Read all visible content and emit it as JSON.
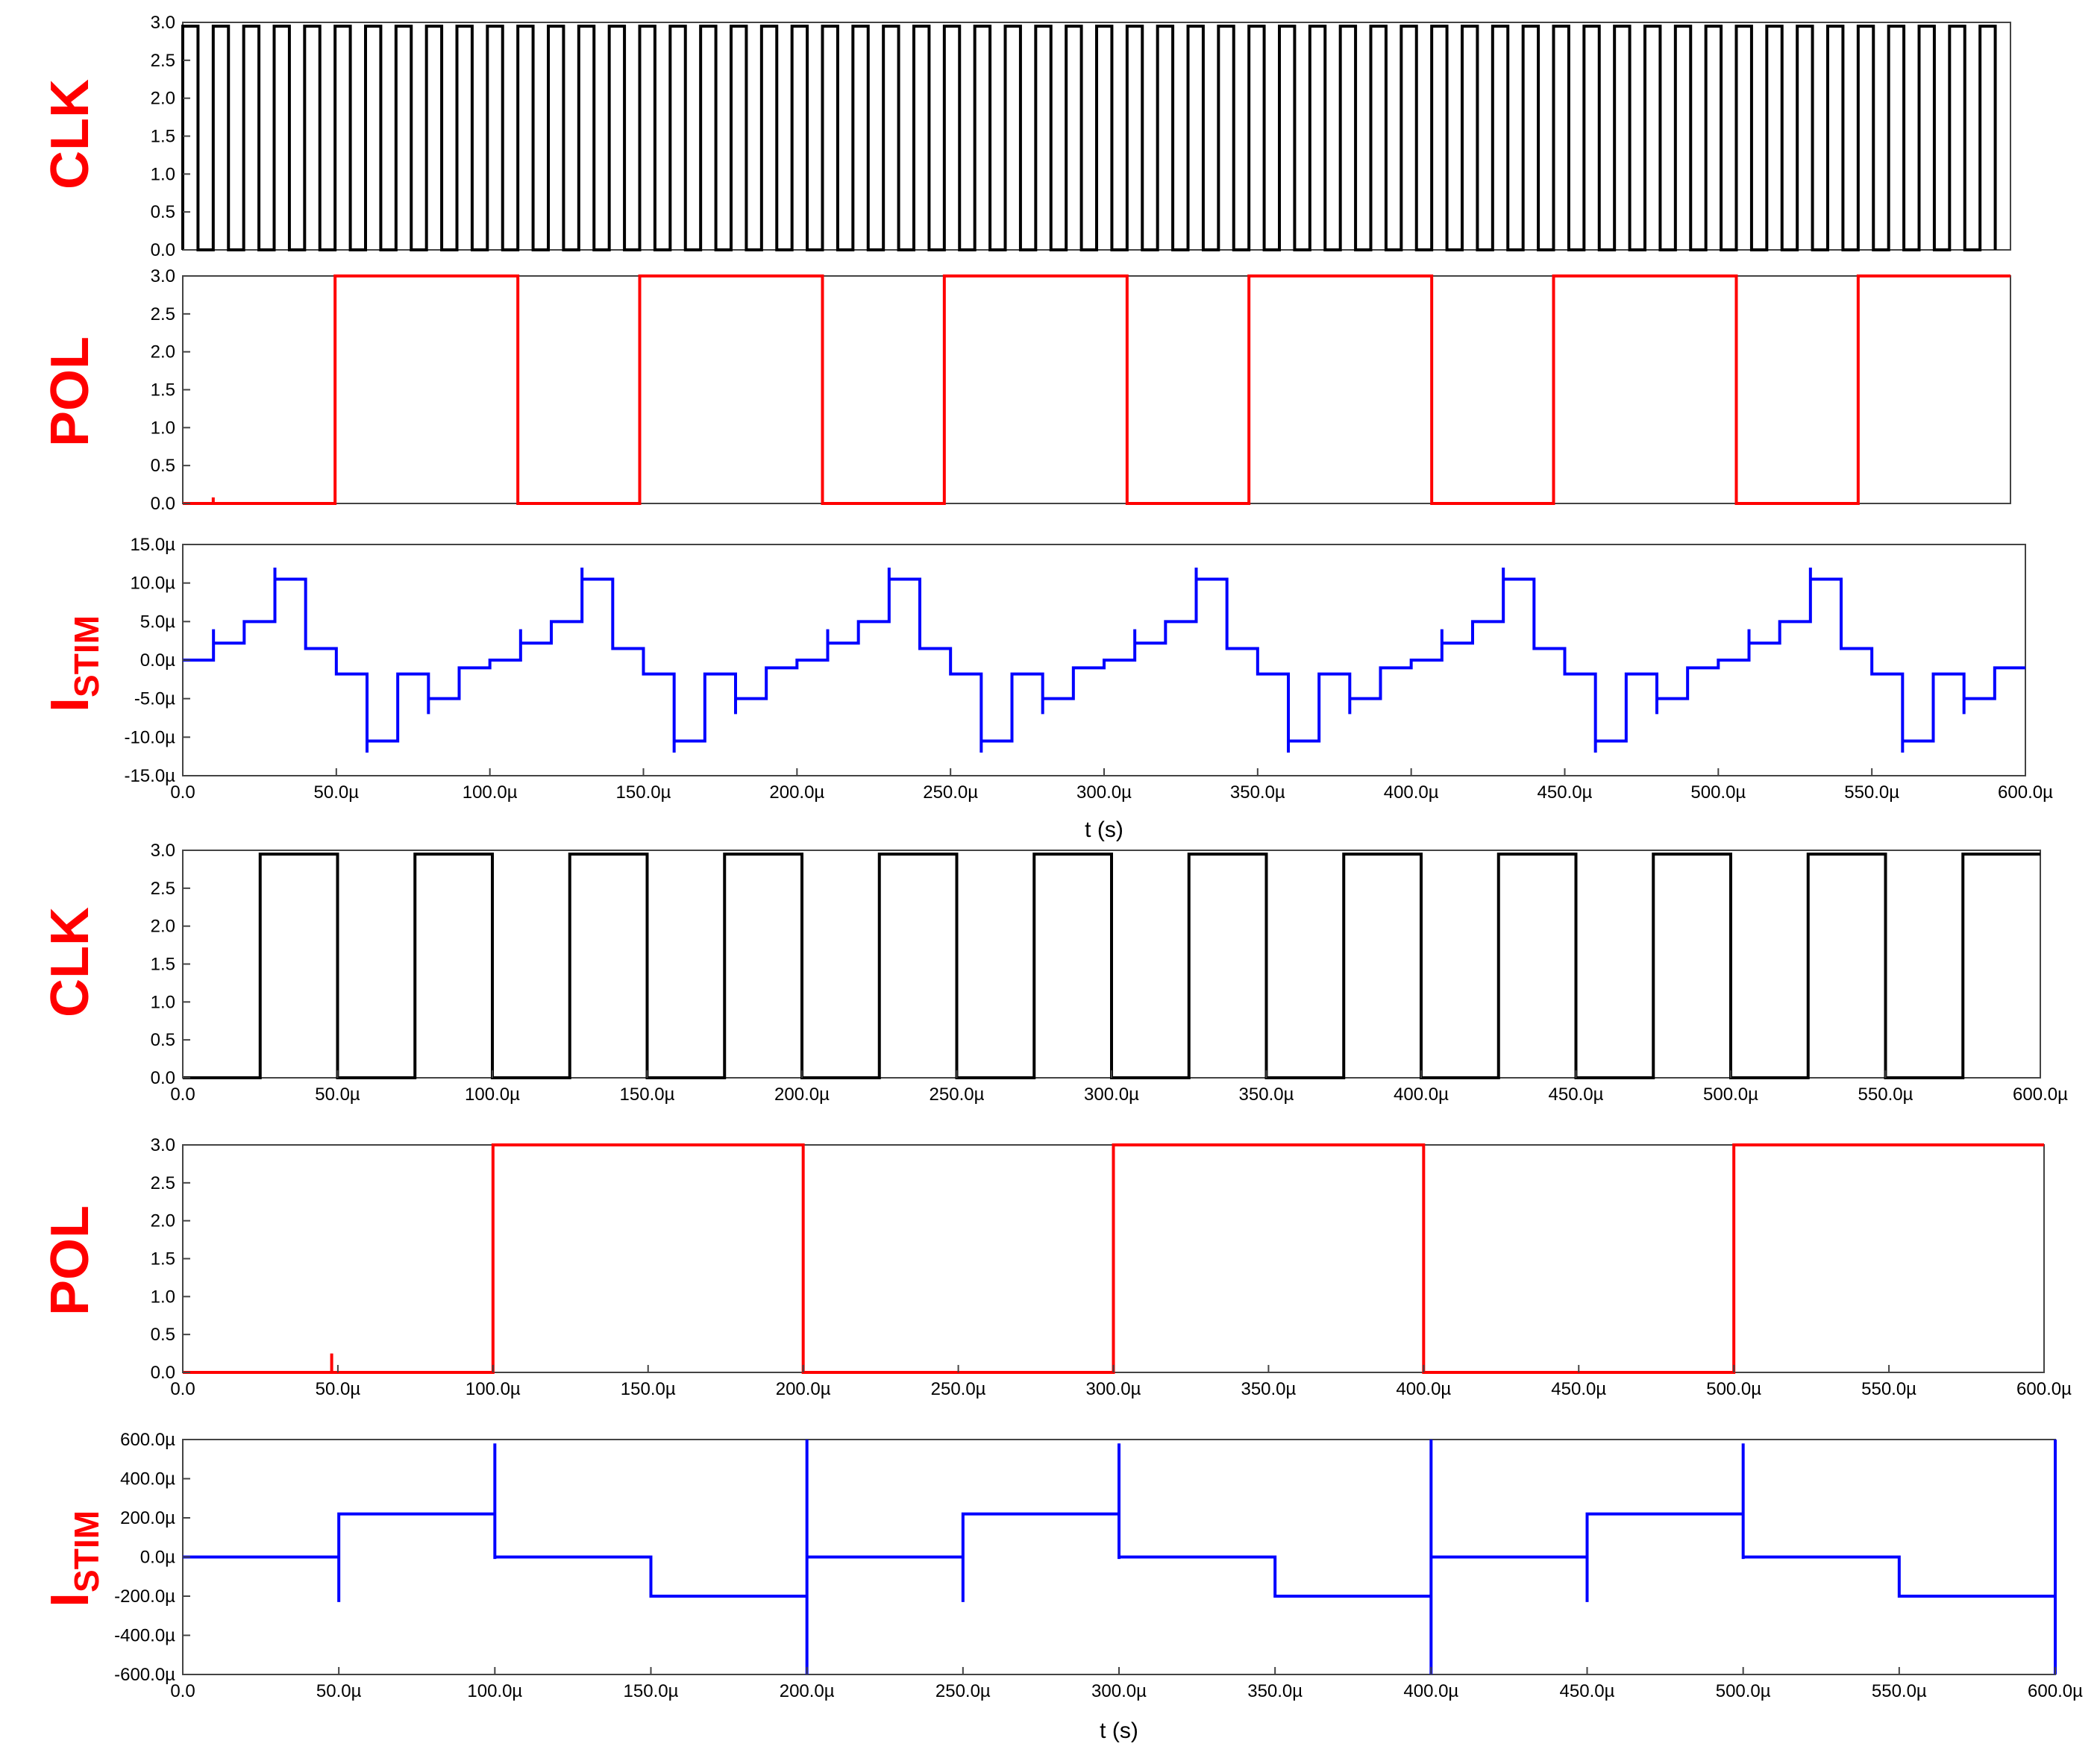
{
  "colors": {
    "clk": "#000000",
    "pol": "#ff0000",
    "istim": "#0000ff",
    "label": "#ff0000",
    "frame": "#444444"
  },
  "units": {
    "micro": "µ"
  },
  "chart_data": [
    {
      "id": "a-clk",
      "type": "line",
      "ylabel": "CLK",
      "xlim": [
        0,
        600
      ],
      "ylim": [
        0,
        3.0
      ],
      "yticks": [
        0,
        0.5,
        1.0,
        1.5,
        2.0,
        2.5,
        3.0
      ],
      "xticks": [],
      "xlabel": "",
      "series": [
        {
          "color": "clk",
          "kind": "pulse",
          "high": 2.95,
          "low": 0,
          "period": 10,
          "first_rise": 0,
          "width": 5
        }
      ]
    },
    {
      "id": "a-pol",
      "type": "line",
      "ylabel": "POL",
      "xlim": [
        0,
        600
      ],
      "ylim": [
        0,
        3.0
      ],
      "yticks": [
        0,
        0.5,
        1.0,
        1.5,
        2.0,
        2.5,
        3.0
      ],
      "xticks": [],
      "xlabel": "",
      "series": [
        {
          "color": "pol",
          "kind": "pulse",
          "high": 3.0,
          "low": 0,
          "period": 100,
          "first_rise": 50,
          "width": 60,
          "glitches": [
            {
              "x": 10,
              "y": 0.08
            }
          ]
        }
      ]
    },
    {
      "id": "a-istim",
      "type": "line",
      "ylabel": "I",
      "ylabel_sub": "STIM",
      "xlim": [
        0,
        600
      ],
      "ylim": [
        -15,
        15
      ],
      "yticks": [
        -15,
        -10,
        -5,
        0,
        5,
        10,
        15
      ],
      "yunit": "µ",
      "xticks": [
        0,
        50,
        100,
        150,
        200,
        250,
        300,
        350,
        400,
        450,
        500,
        550,
        600
      ],
      "xunit": "µ",
      "xlabel": "t (s)",
      "series": [
        {
          "color": "istim",
          "kind": "staircase",
          "period": 100,
          "levels": [
            0,
            2.2,
            5.0,
            10.5,
            1.5,
            -1.8,
            -10.5,
            -1.8,
            -5.0,
            -1.0
          ],
          "peaks": [
            0,
            4.0,
            4.5,
            12.0,
            3.5,
            0,
            -12.0,
            0,
            -7.0,
            0
          ]
        }
      ]
    },
    {
      "id": "b-clk",
      "type": "line",
      "ylabel": "CLK",
      "xlim": [
        0,
        600
      ],
      "ylim": [
        0,
        3.0
      ],
      "yticks": [
        0,
        0.5,
        1.0,
        1.5,
        2.0,
        2.5,
        3.0
      ],
      "xticks": [
        0,
        50,
        100,
        150,
        200,
        250,
        300,
        350,
        400,
        450,
        500,
        550,
        600
      ],
      "xunit": "µ",
      "xlabel": "",
      "series": [
        {
          "color": "clk",
          "kind": "pulse",
          "high": 2.95,
          "low": 0,
          "period": 50,
          "first_rise": 25,
          "width": 25
        }
      ]
    },
    {
      "id": "b-pol",
      "type": "line",
      "ylabel": "POL",
      "xlim": [
        0,
        600
      ],
      "ylim": [
        0,
        3.0
      ],
      "yticks": [
        0,
        0.5,
        1.0,
        1.5,
        2.0,
        2.5,
        3.0
      ],
      "xticks": [
        0,
        50,
        100,
        150,
        200,
        250,
        300,
        350,
        400,
        450,
        500,
        550,
        600
      ],
      "xunit": "µ",
      "xlabel": "",
      "series": [
        {
          "color": "pol",
          "kind": "pulse",
          "high": 3.0,
          "low": 0,
          "period": 200,
          "first_rise": 100,
          "width": 100,
          "glitches": [
            {
              "x": 48,
              "y": 0.25
            }
          ]
        }
      ]
    },
    {
      "id": "b-istim",
      "type": "line",
      "ylabel": "I",
      "ylabel_sub": "STIM",
      "xlim": [
        0,
        600
      ],
      "ylim": [
        -600,
        600
      ],
      "yticks": [
        -600,
        -400,
        -200,
        0,
        200,
        400,
        600
      ],
      "yunit": "µ",
      "xticks": [
        0,
        50,
        100,
        150,
        200,
        250,
        300,
        350,
        400,
        450,
        500,
        550,
        600
      ],
      "xunit": "µ",
      "xlabel": "t (s)",
      "series": [
        {
          "color": "istim",
          "kind": "steps",
          "period": 200,
          "levels": [
            0,
            220,
            0,
            -200
          ],
          "spikes": [
            {
              "t": 50,
              "lo": -230,
              "hi": 30
            },
            {
              "t": 100,
              "lo": -10,
              "hi": 580
            },
            {
              "t": 150,
              "lo": -200,
              "hi": 0
            },
            {
              "t": 200,
              "lo": -600,
              "hi": 600
            }
          ]
        }
      ]
    }
  ]
}
